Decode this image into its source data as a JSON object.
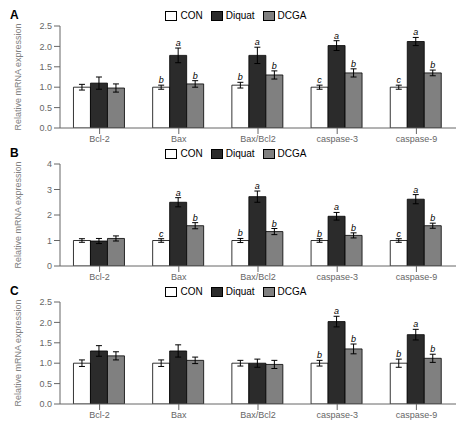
{
  "chart_data": [
    {
      "type": "bar",
      "title": "A",
      "ylabel": "Relative mRNA expression",
      "categories": [
        "Bcl-2",
        "Bax",
        "Bax/Bcl2",
        "caspase-3",
        "caspase-9"
      ],
      "series": [
        {
          "name": "CON",
          "color": "#ffffff",
          "values": [
            1.0,
            1.0,
            1.05,
            1.0,
            1.0
          ],
          "errors": [
            0.07,
            0.05,
            0.07,
            0.05,
            0.05
          ],
          "letters": [
            null,
            "b",
            "b",
            "c",
            "c"
          ]
        },
        {
          "name": "Diquat",
          "color": "#2b2b2b",
          "values": [
            1.1,
            1.78,
            1.78,
            2.02,
            2.12
          ],
          "errors": [
            0.15,
            0.18,
            0.2,
            0.12,
            0.1
          ],
          "letters": [
            null,
            "a",
            "a",
            "a",
            "a"
          ]
        },
        {
          "name": "DCGA",
          "color": "#808080",
          "values": [
            0.98,
            1.08,
            1.3,
            1.35,
            1.35
          ],
          "errors": [
            0.1,
            0.08,
            0.1,
            0.1,
            0.07
          ],
          "letters": [
            null,
            "b",
            "b",
            "b",
            "b"
          ]
        }
      ],
      "ylim": [
        0,
        2.5
      ],
      "yticks": [
        {
          "value": 0,
          "label": "0.0"
        },
        0.5,
        {
          "value": 1.0,
          "label": "1.0"
        },
        1.5,
        {
          "value": 2.0,
          "label": "2.0"
        },
        2.5
      ],
      "grid": false,
      "legend": "top"
    },
    {
      "type": "bar",
      "title": "B",
      "ylabel": "Relative mRNA expression",
      "categories": [
        "Bcl-2",
        "Bax",
        "Bax/Bcl2",
        "caspase-3",
        "caspase-9"
      ],
      "series": [
        {
          "name": "CON",
          "color": "#ffffff",
          "values": [
            1.0,
            1.0,
            1.0,
            1.0,
            1.0
          ],
          "errors": [
            0.07,
            0.07,
            0.08,
            0.07,
            0.07
          ],
          "letters": [
            null,
            "c",
            "b",
            "b",
            "c"
          ]
        },
        {
          "name": "Diquat",
          "color": "#2b2b2b",
          "values": [
            0.98,
            2.5,
            2.72,
            1.95,
            2.62
          ],
          "errors": [
            0.1,
            0.18,
            0.22,
            0.15,
            0.18
          ],
          "letters": [
            null,
            "a",
            "a",
            "a",
            "a"
          ]
        },
        {
          "name": "DCGA",
          "color": "#808080",
          "values": [
            1.08,
            1.58,
            1.35,
            1.2,
            1.58
          ],
          "errors": [
            0.1,
            0.12,
            0.12,
            0.1,
            0.1
          ],
          "letters": [
            null,
            "b",
            "b",
            "b",
            "b"
          ]
        }
      ],
      "ylim": [
        0,
        4
      ],
      "yticks": [
        0,
        1,
        2,
        3,
        4
      ],
      "grid": false,
      "legend": "top"
    },
    {
      "type": "bar",
      "title": "C",
      "ylabel": "Relative mRNA expression",
      "categories": [
        "Bcl-2",
        "Bax",
        "Bax/Bcl2",
        "caspase-3",
        "caspase-9"
      ],
      "series": [
        {
          "name": "CON",
          "color": "#ffffff",
          "values": [
            1.0,
            1.0,
            1.0,
            1.0,
            1.0
          ],
          "errors": [
            0.08,
            0.08,
            0.07,
            0.07,
            0.1
          ],
          "letters": [
            null,
            null,
            null,
            "b",
            "b"
          ]
        },
        {
          "name": "Diquat",
          "color": "#2b2b2b",
          "values": [
            1.3,
            1.3,
            1.0,
            2.02,
            1.7
          ],
          "errors": [
            0.13,
            0.15,
            0.1,
            0.13,
            0.13
          ],
          "letters": [
            null,
            null,
            null,
            "a",
            "a"
          ]
        },
        {
          "name": "DCGA",
          "color": "#808080",
          "values": [
            1.18,
            1.07,
            0.97,
            1.35,
            1.12
          ],
          "errors": [
            0.1,
            0.08,
            0.1,
            0.12,
            0.1
          ],
          "letters": [
            null,
            null,
            null,
            "b",
            "b"
          ]
        }
      ],
      "ylim": [
        0,
        2.5
      ],
      "yticks": [
        {
          "value": 0,
          "label": "0.0"
        },
        0.5,
        {
          "value": 1.0,
          "label": "1.0"
        },
        1.5,
        {
          "value": 2.0,
          "label": "2.0"
        },
        2.5
      ],
      "grid": false,
      "legend": "top"
    }
  ]
}
